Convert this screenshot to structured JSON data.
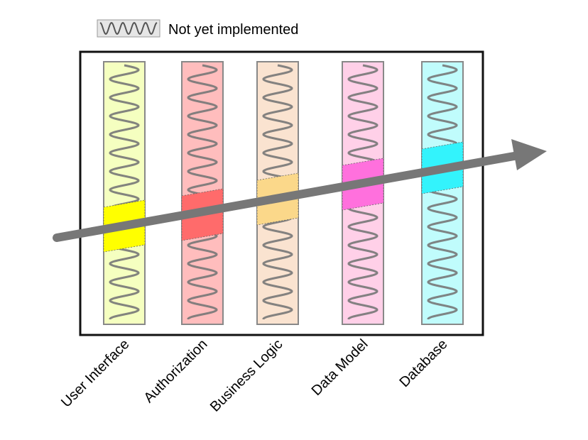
{
  "legend": {
    "label": "Not yet implemented",
    "icon": "squiggle-icon",
    "box_color": "#e6e6e6"
  },
  "layers": [
    {
      "label": "User Interface",
      "background": "#f5ffc0",
      "slice_color": "#ffff00"
    },
    {
      "label": "Authorization",
      "background": "#ffbdbd",
      "slice_color": "#ff6b6b"
    },
    {
      "label": "Business Logic",
      "background": "#fae3d0",
      "slice_color": "#fbd88a"
    },
    {
      "label": "Data Model",
      "background": "#ffd0e8",
      "slice_color": "#ff70dd"
    },
    {
      "label": "Database",
      "background": "#c0fcfc",
      "slice_color": "#33f3fc"
    }
  ],
  "arrow_color": "#777777",
  "squiggle_color": "#777777"
}
